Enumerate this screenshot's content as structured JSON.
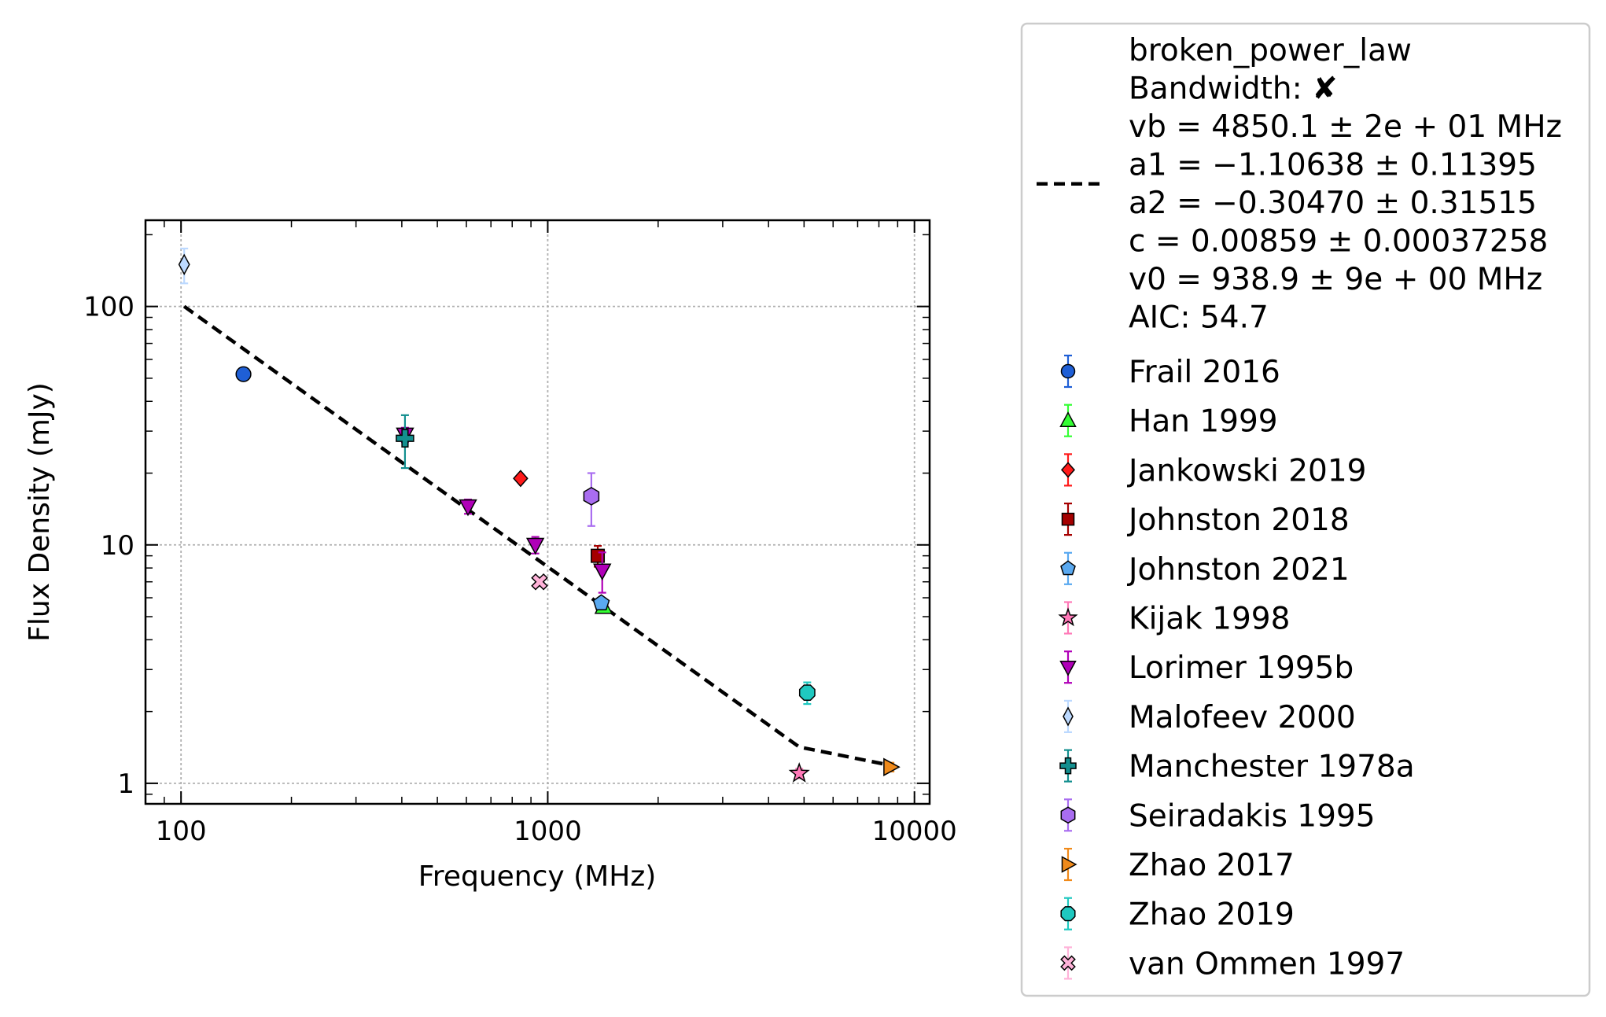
{
  "chart_data": {
    "type": "scatter",
    "xlabel": "Frequency (MHz)",
    "ylabel": "Flux Density (mJy)",
    "xscale": "log",
    "yscale": "log",
    "xlim": [
      80,
      11000
    ],
    "ylim": [
      0.82,
      230
    ],
    "xticks": [
      {
        "value": 100,
        "label": "100"
      },
      {
        "value": 1000,
        "label": "1000"
      },
      {
        "value": 10000,
        "label": "10000"
      }
    ],
    "yticks": [
      {
        "value": 1,
        "label": "1"
      },
      {
        "value": 10,
        "label": "10"
      },
      {
        "value": 100,
        "label": "100"
      }
    ],
    "grid": true,
    "legend_position": "outside right",
    "fit": {
      "model": "broken_power_law",
      "style": "dashed black",
      "legend_lines": [
        "broken_power_law",
        "Bandwidth: ✘",
        "vb = 4850.1 ± 2e + 01 MHz",
        "a1 = −1.10638 ± 0.11395",
        "a2 = −0.30470 ± 0.31515",
        "c = 0.00859 ± 0.00037258",
        "v0 = 938.9 ± 9e + 00 MHz",
        "AIC: 54.7"
      ],
      "x": [
        102,
        4850,
        8600
      ],
      "y": [
        100,
        1.42,
        1.19
      ]
    },
    "series": [
      {
        "name": "Frail 2016",
        "marker": "circle",
        "color": "#1f5fd6",
        "points": [
          {
            "x": 148,
            "y": 52,
            "err": [
              0,
              0
            ]
          }
        ]
      },
      {
        "name": "Han 1999",
        "marker": "triangle-up",
        "color": "#33ff33",
        "points": [
          {
            "x": 1420,
            "y": 5.5,
            "err": [
              0.3,
              0.3
            ]
          }
        ]
      },
      {
        "name": "Jankowski 2019",
        "marker": "diamond",
        "color": "#ff1a1a",
        "points": [
          {
            "x": 843,
            "y": 19,
            "err": [
              0.5,
              0.5
            ]
          }
        ]
      },
      {
        "name": "Johnston 2018",
        "marker": "square",
        "color": "#a50000",
        "points": [
          {
            "x": 1369,
            "y": 9,
            "err": [
              0.9,
              0.9
            ]
          }
        ]
      },
      {
        "name": "Johnston 2021",
        "marker": "pentagon",
        "color": "#5aa9f0",
        "points": [
          {
            "x": 1400,
            "y": 5.7,
            "err": [
              0.3,
              0.3
            ]
          }
        ]
      },
      {
        "name": "Kijak 1998",
        "marker": "star",
        "color": "#ff79b8",
        "points": [
          {
            "x": 4850,
            "y": 1.1,
            "err": [
              0.05,
              0.05
            ]
          }
        ]
      },
      {
        "name": "Lorimer 1995b",
        "marker": "triangle-down",
        "color": "#b000b8",
        "points": [
          {
            "x": 408,
            "y": 29,
            "err": [
              2,
              2
            ]
          },
          {
            "x": 606,
            "y": 14.5,
            "err": [
              1,
              1
            ]
          },
          {
            "x": 925,
            "y": 10,
            "err": [
              0.8,
              0.8
            ]
          },
          {
            "x": 1408,
            "y": 7.8,
            "err": [
              1.5,
              1.5
            ]
          }
        ]
      },
      {
        "name": "Malofeev 2000",
        "marker": "thin-diamond",
        "color": "#bcd9ff",
        "points": [
          {
            "x": 102,
            "y": 150,
            "err": [
              25,
              25
            ]
          }
        ]
      },
      {
        "name": "Manchester 1978a",
        "marker": "plus",
        "color": "#138f8f",
        "points": [
          {
            "x": 408,
            "y": 28,
            "err": [
              7,
              7
            ]
          }
        ]
      },
      {
        "name": "Seiradakis 1995",
        "marker": "hexagon",
        "color": "#a96df0",
        "points": [
          {
            "x": 1315,
            "y": 16,
            "err": [
              4,
              4
            ]
          }
        ]
      },
      {
        "name": "Zhao 2017",
        "marker": "triangle-right",
        "color": "#f08a1a",
        "points": [
          {
            "x": 8600,
            "y": 1.17,
            "err": [
              0.05,
              0.05
            ]
          }
        ]
      },
      {
        "name": "Zhao 2019",
        "marker": "octagon",
        "color": "#1fc8c0",
        "points": [
          {
            "x": 5100,
            "y": 2.4,
            "err": [
              0.25,
              0.25
            ]
          }
        ]
      },
      {
        "name": "van Ommen 1997",
        "marker": "x",
        "color": "#ffb3d9",
        "points": [
          {
            "x": 950,
            "y": 7,
            "err": [
              0.3,
              0.3
            ]
          }
        ]
      }
    ]
  }
}
